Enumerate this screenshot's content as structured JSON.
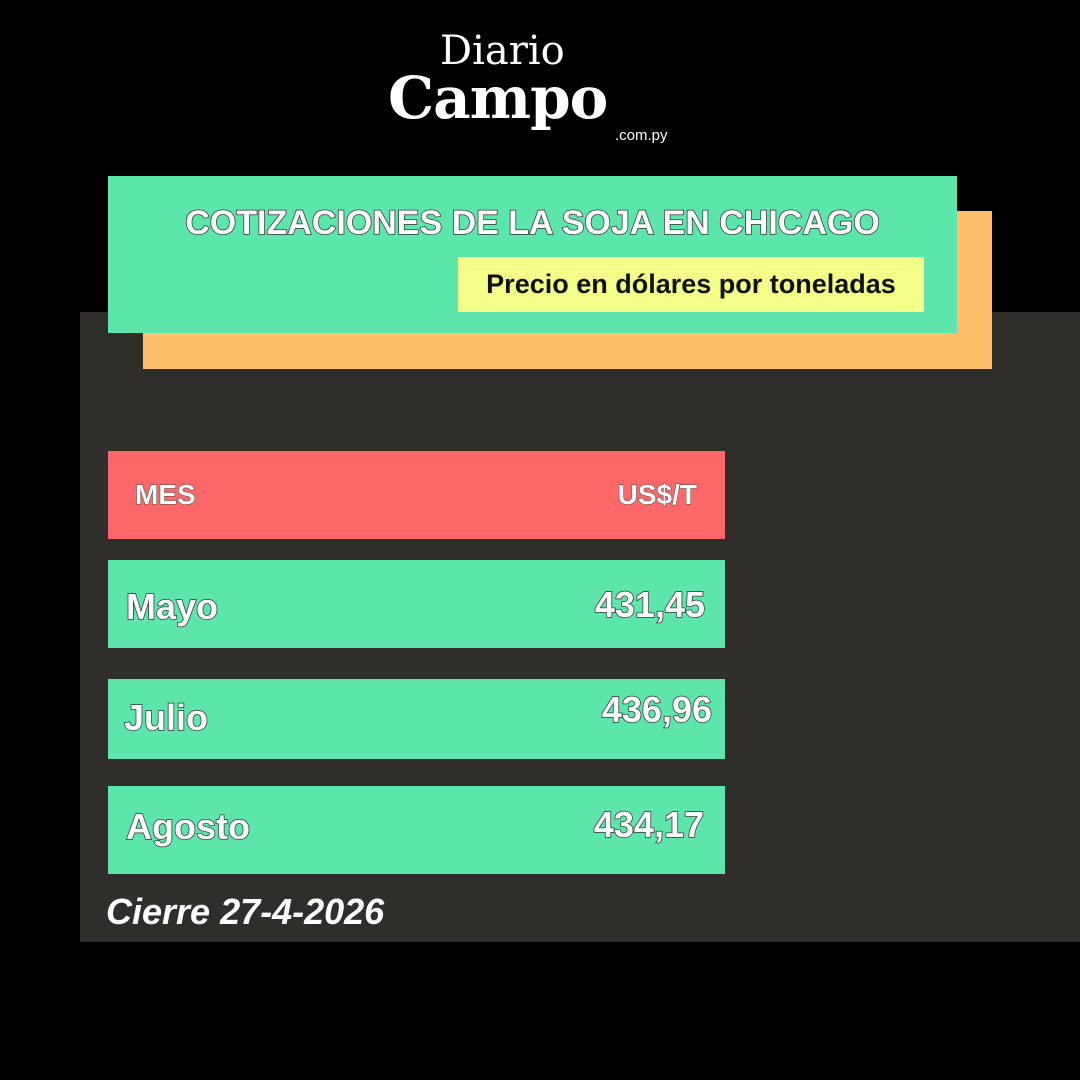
{
  "logo": {
    "line1": "Diario",
    "line2": "Campo",
    "line3": ".com.py"
  },
  "title": "COTIZACIONES DE LA SOJA EN CHICAGO",
  "subtitle": "Precio en dólares por toneladas",
  "table": {
    "headers": [
      "MES",
      "US$/T"
    ],
    "rows": [
      {
        "month": "Mayo",
        "price": "431,45"
      },
      {
        "month": "Julio",
        "price": "436,96"
      },
      {
        "month": "Agosto",
        "price": "434,17"
      }
    ]
  },
  "footer": "Cierre 27-4-2026",
  "colors": {
    "green": "#5ce6ab",
    "red": "#ff6868",
    "orange": "#ffc06b",
    "yellow": "#f4ff8a",
    "panel": "#302e2a"
  }
}
